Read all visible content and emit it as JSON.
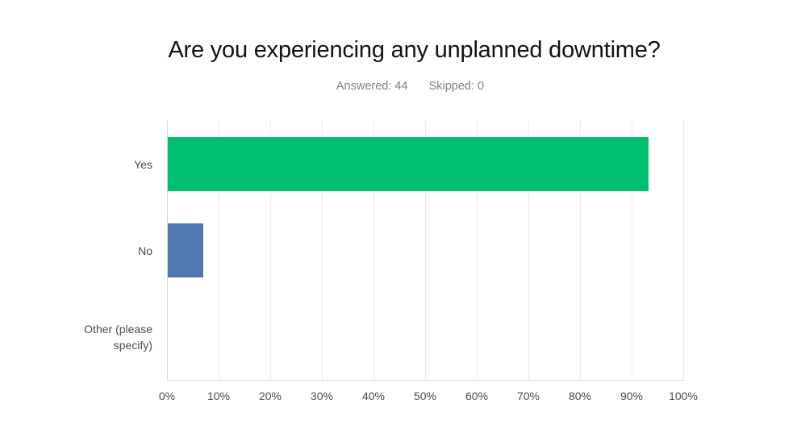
{
  "header": {
    "answered_label": "Answered: 44",
    "skipped_label": "Skipped: 0",
    "answered_count": 44,
    "skipped_count": 0
  },
  "colors": {
    "bar_green": "#00BF6F",
    "bar_blue": "#5079B4",
    "gridline": "#e9eaec",
    "axis_line": "#d6d9dc",
    "label_text": "#454d56",
    "subtitle_text": "#7b848d",
    "title_text": "#101214"
  },
  "chart_data": {
    "type": "bar",
    "orientation": "horizontal",
    "title": "Are you experiencing any unplanned downtime?",
    "subtitle": "Answered: 44  Skipped: 0",
    "categories": [
      "Yes",
      "No",
      "Other (please specify)"
    ],
    "values": [
      93.18,
      6.82,
      0
    ],
    "value_unit": "%",
    "bar_colors": [
      "#00BF6F",
      "#5079B4",
      "#5079B4"
    ],
    "xlim": [
      0,
      100
    ],
    "x_ticks": [
      "0%",
      "10%",
      "20%",
      "30%",
      "40%",
      "50%",
      "60%",
      "70%",
      "80%",
      "90%",
      "100%"
    ],
    "grid": true,
    "legend": false,
    "xlabel": "",
    "ylabel": ""
  }
}
